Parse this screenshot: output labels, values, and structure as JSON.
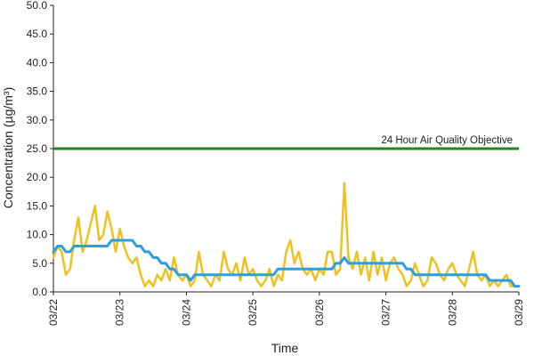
{
  "chart_data": {
    "type": "line",
    "xlabel": "Time",
    "ylabel": "Concentration (µg/m³)",
    "ylim": [
      0,
      50
    ],
    "y_ticks": [
      "0.0",
      "5.0",
      "10.0",
      "15.0",
      "20.0",
      "25.0",
      "30.0",
      "35.0",
      "40.0",
      "45.0",
      "50.0"
    ],
    "x_ticks": [
      "03/22",
      "03/23",
      "03/24",
      "03/25",
      "03/26",
      "03/27",
      "03/28",
      "03/29"
    ],
    "grid": false,
    "colors": {
      "hourly": "#f0c020",
      "average": "#2aa0e0",
      "objective": "#1a8a1a"
    },
    "objective": {
      "label": "24 Hour Air Quality Objective",
      "value": 25
    },
    "series": [
      {
        "key": "hourly",
        "x_days": [
          0,
          0.0625,
          0.125,
          0.1875,
          0.25,
          0.3125,
          0.375,
          0.4375,
          0.5,
          0.5625,
          0.625,
          0.6875,
          0.75,
          0.8125,
          0.875,
          0.9375,
          1,
          1.0625,
          1.125,
          1.1875,
          1.25,
          1.3125,
          1.375,
          1.4375,
          1.5,
          1.5625,
          1.625,
          1.6875,
          1.75,
          1.8125,
          1.875,
          1.9375,
          2,
          2.0625,
          2.125,
          2.1875,
          2.25,
          2.3125,
          2.375,
          2.4375,
          2.5,
          2.5625,
          2.625,
          2.6875,
          2.75,
          2.8125,
          2.875,
          2.9375,
          3,
          3.0625,
          3.125,
          3.1875,
          3.25,
          3.3125,
          3.375,
          3.4375,
          3.5,
          3.5625,
          3.625,
          3.6875,
          3.75,
          3.8125,
          3.875,
          3.9375,
          4,
          4.0625,
          4.125,
          4.1875,
          4.25,
          4.3125,
          4.375,
          4.4375,
          4.5,
          4.5625,
          4.625,
          4.6875,
          4.75,
          4.8125,
          4.875,
          4.9375,
          5,
          5.0625,
          5.125,
          5.1875,
          5.25,
          5.3125,
          5.375,
          5.4375,
          5.5,
          5.5625,
          5.625,
          5.6875,
          5.75,
          5.8125,
          5.875,
          5.9375,
          6,
          6.0625,
          6.125,
          6.1875,
          6.25,
          6.3125,
          6.375,
          6.4375,
          6.5,
          6.5625,
          6.625,
          6.6875,
          6.75,
          6.8125,
          6.875,
          6.9375,
          7
        ],
        "values": [
          6,
          8,
          7,
          3,
          4,
          9,
          13,
          7,
          9,
          12,
          15,
          9,
          10,
          14,
          11,
          7,
          11,
          8,
          6,
          5,
          6,
          3,
          1,
          2,
          1,
          3,
          2,
          4,
          2,
          6,
          3,
          2,
          3,
          1,
          2,
          7,
          3,
          2,
          1,
          3,
          2,
          7,
          4,
          3,
          5,
          2,
          6,
          3,
          4,
          2,
          1,
          2,
          4,
          1,
          3,
          2,
          7,
          9,
          5,
          7,
          4,
          3,
          4,
          2,
          4,
          3,
          7,
          7,
          3,
          4,
          19,
          6,
          4,
          7,
          3,
          6,
          2,
          7,
          3,
          6,
          2,
          5,
          6,
          4,
          3,
          1,
          2,
          5,
          3,
          1,
          2,
          6,
          5,
          3,
          2,
          4,
          5,
          3,
          2,
          1,
          4,
          7,
          3,
          2,
          3,
          1,
          2,
          1,
          2,
          3,
          1,
          1,
          1
        ]
      },
      {
        "key": "average",
        "x_days": [
          0,
          0.0625,
          0.125,
          0.1875,
          0.25,
          0.3125,
          0.375,
          0.4375,
          0.5,
          0.5625,
          0.625,
          0.6875,
          0.75,
          0.8125,
          0.875,
          0.9375,
          1,
          1.0625,
          1.125,
          1.1875,
          1.25,
          1.3125,
          1.375,
          1.4375,
          1.5,
          1.5625,
          1.625,
          1.6875,
          1.75,
          1.8125,
          1.875,
          1.9375,
          2,
          2.0625,
          2.125,
          2.1875,
          2.25,
          2.3125,
          2.375,
          2.4375,
          2.5,
          2.5625,
          2.625,
          2.6875,
          2.75,
          2.8125,
          2.875,
          2.9375,
          3,
          3.0625,
          3.125,
          3.1875,
          3.25,
          3.3125,
          3.375,
          3.4375,
          3.5,
          3.5625,
          3.625,
          3.6875,
          3.75,
          3.8125,
          3.875,
          3.9375,
          4,
          4.0625,
          4.125,
          4.1875,
          4.25,
          4.3125,
          4.375,
          4.4375,
          4.5,
          4.5625,
          4.625,
          4.6875,
          4.75,
          4.8125,
          4.875,
          4.9375,
          5,
          5.0625,
          5.125,
          5.1875,
          5.25,
          5.3125,
          5.375,
          5.4375,
          5.5,
          5.5625,
          5.625,
          5.6875,
          5.75,
          5.8125,
          5.875,
          5.9375,
          6,
          6.0625,
          6.125,
          6.1875,
          6.25,
          6.3125,
          6.375,
          6.4375,
          6.5,
          6.5625,
          6.625,
          6.6875,
          6.75,
          6.8125,
          6.875,
          6.9375,
          7
        ],
        "values": [
          7,
          8,
          8,
          7,
          7,
          8,
          8,
          8,
          8,
          8,
          8,
          8,
          8,
          8,
          9,
          9,
          9,
          9,
          9,
          9,
          8,
          8,
          7,
          7,
          6,
          6,
          5,
          5,
          4,
          4,
          3,
          3,
          3,
          2,
          3,
          3,
          3,
          3,
          3,
          3,
          3,
          3,
          3,
          3,
          3,
          3,
          3,
          3,
          3,
          3,
          3,
          3,
          3,
          3,
          4,
          4,
          4,
          4,
          4,
          4,
          4,
          4,
          4,
          4,
          4,
          4,
          4,
          4,
          5,
          5,
          6,
          5,
          5,
          5,
          5,
          5,
          5,
          5,
          5,
          5,
          5,
          5,
          5,
          5,
          5,
          4,
          4,
          3,
          3,
          3,
          3,
          3,
          3,
          3,
          3,
          3,
          3,
          3,
          3,
          3,
          3,
          3,
          3,
          3,
          3,
          2,
          2,
          2,
          2,
          2,
          2,
          1,
          1
        ]
      }
    ]
  }
}
